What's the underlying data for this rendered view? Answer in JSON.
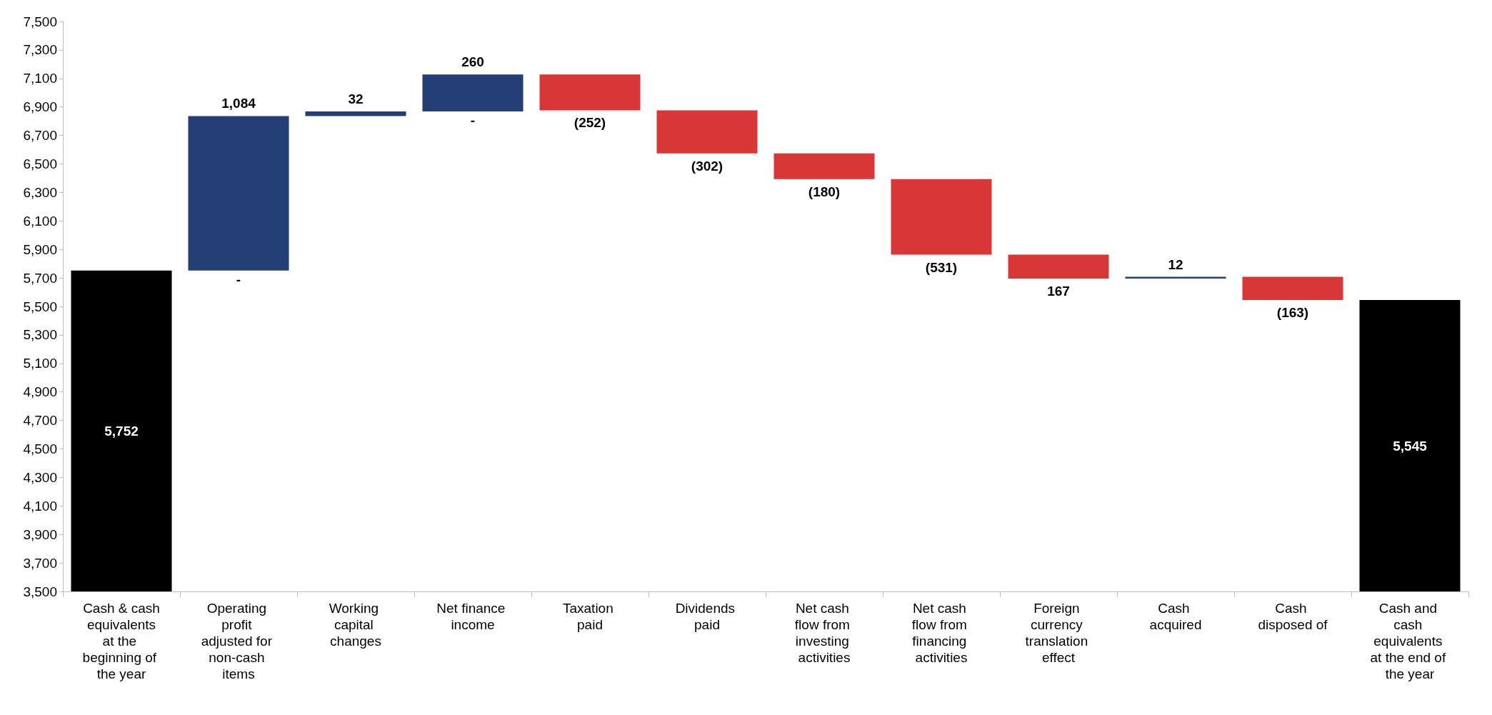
{
  "chart_data": {
    "type": "bar",
    "categories": [
      "Cash & cash equivalents at the beginning of the year",
      "Operating profit adjusted for non-cash items",
      "Working capital changes",
      "Net finance income",
      "Taxation paid",
      "Dividends paid",
      "Net cash flow from investing activities",
      "Net cash flow from financing activities",
      "Foreign currency translation effect",
      "Cash acquired",
      "Cash disposed of",
      "Cash and cash equivalents at the end of the year"
    ],
    "values": [
      5752,
      1084,
      32,
      260,
      -252,
      -302,
      -180,
      -531,
      -167,
      12,
      -163,
      5545
    ],
    "base": [
      null,
      5752,
      6836,
      6868,
      7128,
      6876,
      6574,
      6394,
      5863,
      5696,
      5708,
      null
    ],
    "colors": [
      "#000000",
      "#243f75",
      "#243f75",
      "#243f75",
      "#d93636",
      "#d93636",
      "#d93636",
      "#d93636",
      "#d93636",
      "#243f75",
      "#d93636",
      "#000000"
    ],
    "value_labels": [
      "5,752",
      "1,084",
      "32",
      "260",
      "(252)",
      "(302)",
      "(180)",
      "(531)",
      "167",
      "12",
      "(163)",
      "5,545"
    ],
    "annotations": [
      {
        "text": "-",
        "x": "Operating profit adjusted for non-cash items",
        "y": 5752
      },
      {
        "text": "-",
        "x": "Net finance income",
        "y": 6868
      }
    ],
    "ylim": [
      3500,
      7500
    ],
    "yticks": [
      {
        "value": 3500,
        "label": "3,500"
      },
      {
        "value": 3700,
        "label": "3,700"
      },
      {
        "value": 3900,
        "label": "3,900"
      },
      {
        "value": 4100,
        "label": "4,100"
      },
      {
        "value": 4300,
        "label": "4,300"
      },
      {
        "value": 4500,
        "label": "4,500"
      },
      {
        "value": 4700,
        "label": "4,700"
      },
      {
        "value": 4900,
        "label": "4,900"
      },
      {
        "value": 5100,
        "label": "5,100"
      },
      {
        "value": 5300,
        "label": "5,300"
      },
      {
        "value": 5500,
        "label": "5,500"
      },
      {
        "value": 5700,
        "label": "5,700"
      },
      {
        "value": 5900,
        "label": "5,900"
      },
      {
        "value": 6100,
        "label": "6,100"
      },
      {
        "value": 6300,
        "label": "6,300"
      },
      {
        "value": 6500,
        "label": "6,500"
      },
      {
        "value": 6700,
        "label": "6,700"
      },
      {
        "value": 6900,
        "label": "6,900"
      },
      {
        "value": 7100,
        "label": "7,100"
      },
      {
        "value": 7300,
        "label": "7,300"
      },
      {
        "value": 7500,
        "label": "7,500"
      }
    ],
    "grid": false
  }
}
